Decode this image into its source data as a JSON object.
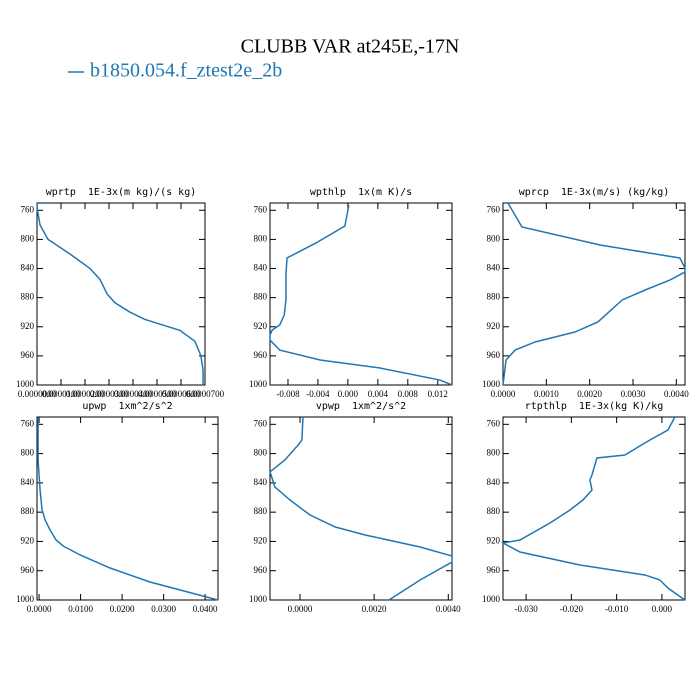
{
  "title": "CLUBB VAR at245E,-17N",
  "legend": [
    {
      "name": "b1850.054.f_ztest2e_2b",
      "color": "#1f77b4"
    }
  ],
  "chart_data": [
    {
      "type": "line",
      "title": "wprtp  1E-3x(m kg)/(s kg)",
      "xlim": [
        0,
        7e-05
      ],
      "xticks": [
        {
          "value": 0,
          "label": "0.0000000"
        },
        {
          "value": 1e-05,
          "label": "0.0000100"
        },
        {
          "value": 2e-05,
          "label": "0.0000200"
        },
        {
          "value": 3e-05,
          "label": "0.0000300"
        },
        {
          "value": 4e-05,
          "label": "0.0000400"
        },
        {
          "value": 5e-05,
          "label": "0.0000500"
        },
        {
          "value": 6e-05,
          "label": "0.0000600"
        },
        {
          "value": 7e-05,
          "label": "0.0000700"
        }
      ],
      "ylim": [
        1000,
        750
      ],
      "yticks": [
        760,
        800,
        840,
        880,
        920,
        960,
        1000
      ],
      "series": [
        {
          "color": "#1f77b4",
          "x": [
            0,
            2e-07,
            1.25e-06,
            4.6e-06,
            1.375e-05,
            2.21e-05,
            2.625e-05,
            2.92e-05,
            3.25e-05,
            3.875e-05,
            4.5e-05,
            5.96e-05,
            6.58e-05,
            6.83e-05,
            6.92e-05,
            6.92e-05
          ],
          "values": [
            750,
            760,
            780,
            800,
            820,
            840,
            855,
            875,
            887,
            900,
            910,
            925,
            940,
            960,
            980,
            1000
          ]
        }
      ]
    },
    {
      "type": "line",
      "title": "wpthlp  1x(m K)/s",
      "xlim": [
        -0.0104,
        0.0139
      ],
      "xticks": [
        -0.008,
        -0.004,
        {
          "value": 0,
          "label": "0.000"
        },
        0.004,
        0.008,
        0.012
      ],
      "ylim": [
        1000,
        750
      ],
      "yticks": [
        760,
        800,
        840,
        880,
        920,
        960,
        1000
      ],
      "series": [
        {
          "color": "#1f77b4",
          "x": [
            0.00013,
            -0.0004,
            -0.00426,
            -0.00813,
            -0.00827,
            -0.00827,
            -0.0085,
            -0.0091,
            -0.0101,
            -0.0104,
            -0.0104,
            -0.0091,
            -0.0037,
            0.0043,
            0.0123,
            0.0139
          ],
          "values": [
            752.7,
            781.6,
            804.9,
            825.5,
            848.9,
            883.2,
            903.8,
            917.6,
            924.5,
            931.4,
            938.2,
            952,
            965.7,
            976.7,
            993.2,
            1000
          ]
        }
      ]
    },
    {
      "type": "line",
      "title": "wprcp  1E-3x(m/s) (kg/kg)",
      "xlim": [
        0,
        0.0042
      ],
      "xticks": [
        {
          "value": 0,
          "label": "0.0000"
        },
        {
          "value": 0.001,
          "label": "0.0010"
        },
        {
          "value": 0.002,
          "label": "0.0020"
        },
        {
          "value": 0.003,
          "label": "0.0030"
        },
        {
          "value": 0.004,
          "label": "0.0040"
        }
      ],
      "ylim": [
        1000,
        750
      ],
      "yticks": [
        760,
        800,
        840,
        880,
        920,
        960,
        1000
      ],
      "series": [
        {
          "color": "#1f77b4",
          "x": [
            0.000115,
            0.000208,
            0.000438,
            0.00224,
            0.00408,
            0.0042,
            0.0042,
            0.00385,
            0.00328,
            0.00275,
            0.00219,
            0.00166,
            0.00074,
            0.00028,
            7e-05,
            0
          ],
          "values": [
            750,
            759.6,
            783,
            807.7,
            825.5,
            839.3,
            844.8,
            855.8,
            869.5,
            883.2,
            913.4,
            927.2,
            940.9,
            952,
            965.7,
            1000
          ]
        }
      ]
    },
    {
      "type": "line",
      "title": "upwp  1xm^2/s^2",
      "xlim": [
        -0.0005,
        0.0431
      ],
      "xticks": [
        {
          "value": 0,
          "label": "0.0000"
        },
        {
          "value": 0.01,
          "label": "0.0100"
        },
        {
          "value": 0.02,
          "label": "0.0200"
        },
        {
          "value": 0.03,
          "label": "0.0300"
        },
        {
          "value": 0.04,
          "label": "0.0400"
        }
      ],
      "ylim": [
        1000,
        750
      ],
      "yticks": [
        760,
        800,
        840,
        880,
        920,
        960,
        1000
      ],
      "series": [
        {
          "color": "#1f77b4",
          "x": [
            -0.00024,
            -0.00024,
            0.00024,
            0.00072,
            0.00145,
            0.00265,
            0.0041,
            0.0058,
            0.0099,
            0.0171,
            0.0267,
            0.0431
          ],
          "values": [
            750,
            808.7,
            849.7,
            877,
            890.7,
            904.4,
            918,
            926.2,
            938.5,
            956.3,
            975.4,
            1000
          ]
        }
      ]
    },
    {
      "type": "line",
      "title": "vpwp  1xm^2/s^2",
      "xlim": [
        -0.00081,
        0.0041
      ],
      "xticks": [
        {
          "value": 0,
          "label": "0.0000"
        },
        {
          "value": 0.002,
          "label": "0.0020"
        },
        {
          "value": 0.004,
          "label": "0.0040"
        }
      ],
      "ylim": [
        1000,
        750
      ],
      "yticks": [
        760,
        800,
        840,
        880,
        920,
        960,
        1000
      ],
      "series": [
        {
          "color": "#1f77b4",
          "x": [
            8e-05,
            5e-05,
            -5e-05,
            -0.00041,
            -0.00081,
            -0.00078,
            -0.00068,
            -0.00027,
            0.00027,
            0.00095,
            0.00176,
            0.00324,
            0.0041,
            0.0041,
            0.00324,
            0.0024
          ],
          "values": [
            750,
            781.4,
            788.3,
            808.7,
            825.1,
            829.2,
            845.6,
            863.4,
            883.9,
            900.3,
            911.2,
            927.6,
            939.9,
            948.1,
            972.7,
            1000
          ]
        }
      ]
    },
    {
      "type": "line",
      "title": "rtpthlp  1E-3x(kg K)/kg",
      "xlim": [
        -0.0351,
        0.0051
      ],
      "xticks": [
        {
          "value": -0.03,
          "label": "-0.030"
        },
        {
          "value": -0.02,
          "label": "-0.020"
        },
        {
          "value": -0.01,
          "label": "-0.010"
        },
        {
          "value": 0,
          "label": "0.000"
        }
      ],
      "ylim": [
        1000,
        750
      ],
      "yticks": [
        760,
        800,
        840,
        880,
        920,
        960,
        1000
      ],
      "series": [
        {
          "color": "#1f77b4",
          "x": [
            0.00287,
            0.00132,
            -0.00265,
            -0.00817,
            -0.01435,
            -0.01545,
            -0.0159,
            -0.01545,
            -0.01744,
            -0.0203,
            -0.02472,
            -0.03135,
            -0.0351,
            -0.03135,
            -0.0181,
            -0.00375,
            -0.00044,
            0.00132,
            0.00508
          ],
          "values": [
            750,
            767.8,
            781.4,
            801.9,
            806,
            829.2,
            836.1,
            849.7,
            863.4,
            877,
            894.8,
            918,
            922.1,
            934.4,
            952.2,
            965.8,
            972.7,
            983.6,
            1000
          ]
        }
      ]
    }
  ]
}
